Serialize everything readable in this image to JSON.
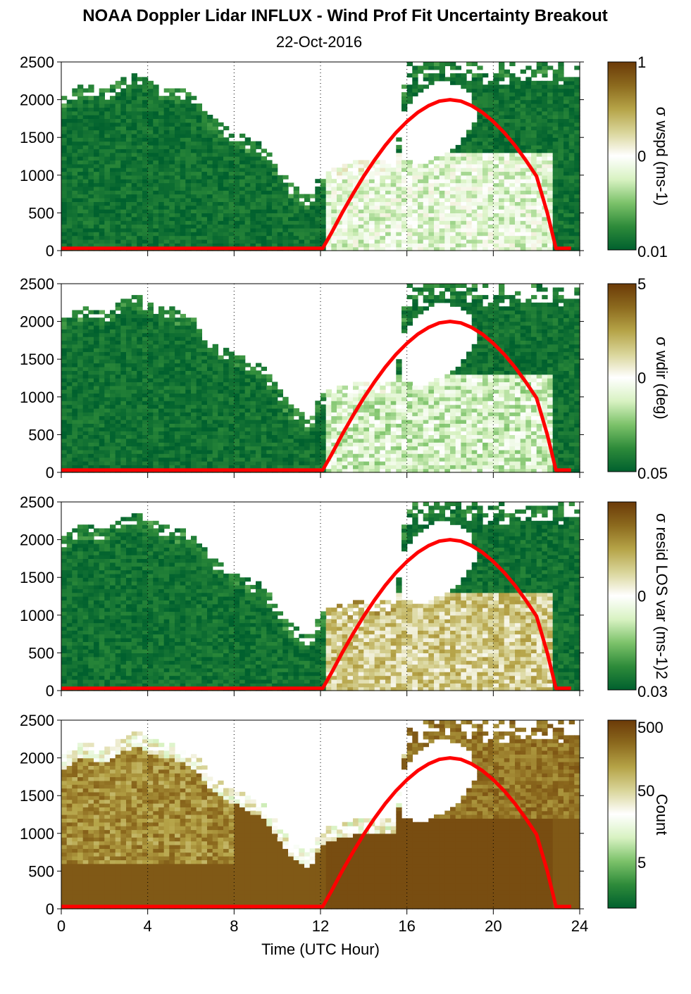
{
  "title": "NOAA Doppler Lidar INFLUX - Wind Prof Fit Uncertainty Breakout",
  "subtitle": "22-Oct-2016",
  "chart_data": {
    "type": "heatmap",
    "xlabel": "Time (UTC Hour)",
    "xlim": [
      0,
      24
    ],
    "x_ticks": [
      "0",
      "4",
      "8",
      "12",
      "16",
      "20",
      "24"
    ],
    "ylim": [
      0,
      2500
    ],
    "y_ticks": [
      "0",
      "500",
      "1000",
      "1500",
      "2000",
      "2500"
    ],
    "grid": "dotted vertical lines every 4 hours",
    "data_top_boundary": {
      "x": [
        0,
        1,
        2,
        3,
        3.5,
        4,
        5,
        6,
        6.5,
        7,
        8,
        9,
        9.5,
        10,
        10.5,
        11,
        11.5,
        12,
        12.5,
        13,
        14,
        15,
        15.5,
        16,
        24
      ],
      "y": [
        2000,
        2200,
        2150,
        2300,
        2350,
        2250,
        2200,
        2100,
        1950,
        1750,
        1600,
        1450,
        1350,
        1150,
        950,
        800,
        750,
        1000,
        1100,
        1150,
        1200,
        1200,
        1200,
        2500,
        2500
      ]
    },
    "clear_hole": {
      "x": [
        15.8,
        16.5,
        17,
        18,
        18.8,
        19.3,
        18.8,
        17.5,
        16.5,
        15.8
      ],
      "y": [
        1200,
        1150,
        1180,
        1300,
        1550,
        1800,
        2150,
        2250,
        2100,
        1800
      ]
    },
    "elevation_curve": {
      "name": "",
      "color": "#ff0000",
      "x": [
        0,
        12.1,
        12.5,
        13,
        13.5,
        14,
        14.5,
        15,
        15.5,
        16,
        16.5,
        17,
        17.5,
        18,
        18.5,
        19,
        19.5,
        20,
        20.5,
        21,
        21.5,
        22,
        22.5,
        22.9,
        23.6
      ],
      "y": [
        30,
        30,
        230,
        500,
        750,
        985,
        1200,
        1395,
        1565,
        1710,
        1830,
        1920,
        1980,
        2000,
        1980,
        1920,
        1830,
        1710,
        1565,
        1395,
        1200,
        985,
        500,
        30,
        30
      ]
    },
    "panels": [
      {
        "id": "wspd",
        "colorbar_label": "σ wspd (ms-1)",
        "colorbar_ticks": [
          "1",
          "0",
          "0.01"
        ],
        "scale": "log",
        "range": [
          0.01,
          1
        ],
        "daytime_level": 0.42
      },
      {
        "id": "wdir",
        "colorbar_label": "σ wdir (deg)",
        "colorbar_ticks": [
          "5",
          "0",
          "0.05"
        ],
        "scale": "log",
        "range": [
          0.05,
          5
        ],
        "daytime_level": 0.38
      },
      {
        "id": "resid",
        "colorbar_label": "σ resid LOS var (ms-1)2",
        "colorbar_ticks": [
          "0",
          "0.03"
        ],
        "scale": "log",
        "range": [
          0.03,
          1
        ],
        "daytime_level": 0.65
      },
      {
        "id": "count",
        "colorbar_label": "Count",
        "colorbar_ticks": [
          "500",
          "50",
          "5"
        ],
        "scale": "log",
        "range": [
          1,
          1000
        ],
        "daytime_level": 0.95
      }
    ],
    "colormap": [
      "#00602e",
      "#2e8b3a",
      "#7cc26a",
      "#d8f2c2",
      "#ffffff",
      "#d9d59a",
      "#b5a347",
      "#8c6a1e",
      "#6b3a08"
    ]
  }
}
